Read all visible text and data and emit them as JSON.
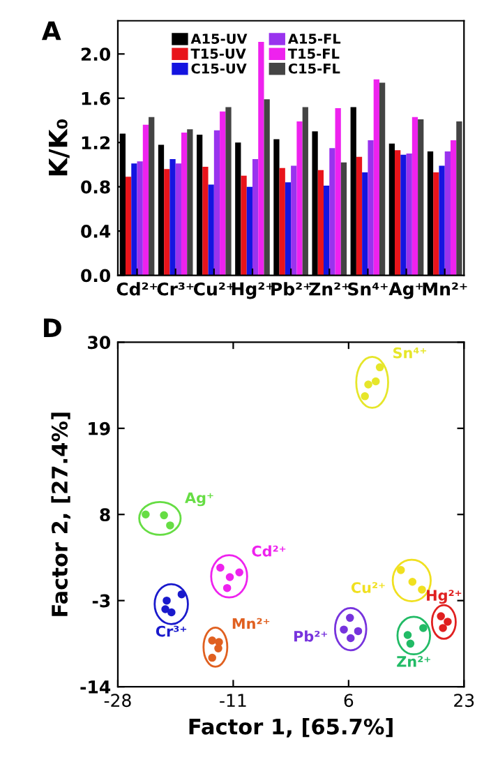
{
  "chart_data": [
    {
      "type": "bar",
      "title": "A",
      "ylabel": "K/K₀",
      "categories": [
        "Cd²⁺",
        "Cr³⁺",
        "Cu²⁺",
        "Hg²⁺",
        "Pb²⁺",
        "Zn²⁺",
        "Sn⁴⁺",
        "Ag⁺",
        "Mn²⁺"
      ],
      "series": [
        {
          "name": "A15-UV",
          "color": "#000000",
          "values": [
            1.28,
            1.18,
            1.27,
            1.2,
            1.23,
            1.3,
            1.52,
            1.19,
            1.12
          ]
        },
        {
          "name": "T15-UV",
          "color": "#e8141b",
          "values": [
            0.89,
            0.96,
            0.98,
            0.9,
            0.97,
            0.95,
            1.07,
            1.13,
            0.93
          ]
        },
        {
          "name": "C15-UV",
          "color": "#1414e0",
          "values": [
            1.01,
            1.05,
            0.82,
            0.8,
            0.84,
            0.81,
            0.93,
            1.09,
            0.99
          ]
        },
        {
          "name": "A15-FL",
          "color": "#9933ee",
          "values": [
            1.03,
            1.01,
            1.31,
            1.05,
            0.99,
            1.15,
            1.22,
            1.1,
            1.12
          ]
        },
        {
          "name": "T15-FL",
          "color": "#ee22ee",
          "values": [
            1.36,
            1.29,
            1.48,
            2.11,
            1.39,
            1.51,
            1.77,
            1.43,
            1.22
          ]
        },
        {
          "name": "C15-FL",
          "color": "#444444",
          "values": [
            1.43,
            1.32,
            1.52,
            1.59,
            1.52,
            1.02,
            1.74,
            1.41,
            1.39
          ]
        }
      ],
      "ylim": [
        0,
        2.3
      ],
      "yticks": [
        {
          "value": 0,
          "label": "0.0"
        },
        0.4,
        0.8,
        1.2,
        1.6,
        {
          "value": 2,
          "label": "2.0"
        }
      ],
      "legend": "top",
      "grid": false
    },
    {
      "type": "scatter",
      "title": "D",
      "xlabel": "Factor 1, [65.7%]",
      "ylabel": "Factor 2, [27.4%]",
      "series": [
        {
          "name": "Sn⁴⁺",
          "color": "#e6e62a",
          "x": [
            10.6,
            8.9,
            8.4,
            10.0
          ],
          "values": [
            26.8,
            24.6,
            23.1,
            25.0
          ]
        },
        {
          "name": "Ag⁺",
          "color": "#66dd44",
          "x": [
            -23.9,
            -21.2,
            -20.3
          ],
          "values": [
            8.0,
            7.9,
            6.6
          ]
        },
        {
          "name": "Cd²⁺",
          "color": "#ee22ee",
          "x": [
            -12.9,
            -11.5,
            -10.1,
            -11.9
          ],
          "values": [
            1.2,
            0.0,
            0.6,
            -1.4
          ]
        },
        {
          "name": "Cr³⁺",
          "color": "#1a1acc",
          "x": [
            -18.6,
            -20.8,
            -21.0,
            -20.1
          ],
          "values": [
            -2.2,
            -3.0,
            -4.1,
            -4.5
          ]
        },
        {
          "name": "Mn²⁺",
          "color": "#e06020",
          "x": [
            -14.1,
            -13.1,
            -13.2,
            -14.1
          ],
          "values": [
            -8.1,
            -8.3,
            -9.1,
            -10.3
          ]
        },
        {
          "name": "Cu²⁺",
          "color": "#f0e020",
          "x": [
            13.7,
            15.4,
            16.8
          ],
          "values": [
            0.9,
            -0.6,
            -1.6
          ]
        },
        {
          "name": "Pb²⁺",
          "color": "#7733dd",
          "x": [
            6.2,
            5.3,
            7.4,
            6.3
          ],
          "values": [
            -5.2,
            -6.7,
            -6.9,
            -7.8
          ]
        },
        {
          "name": "Zn²⁺",
          "color": "#22bb66",
          "x": [
            14.7,
            17.0,
            15.1
          ],
          "values": [
            -7.4,
            -6.5,
            -8.5
          ]
        },
        {
          "name": "Hg²⁺",
          "color": "#e02020",
          "x": [
            19.6,
            20.6,
            19.9
          ],
          "values": [
            -5.0,
            -5.7,
            -6.5
          ]
        }
      ],
      "xlim": [
        -28,
        23
      ],
      "xticks": [
        -28,
        -11,
        6,
        23
      ],
      "ylim": [
        -14,
        30
      ],
      "yticks": [
        -14,
        -3,
        8,
        19,
        30
      ],
      "marker": "circle",
      "legend": false,
      "grid": false
    }
  ]
}
